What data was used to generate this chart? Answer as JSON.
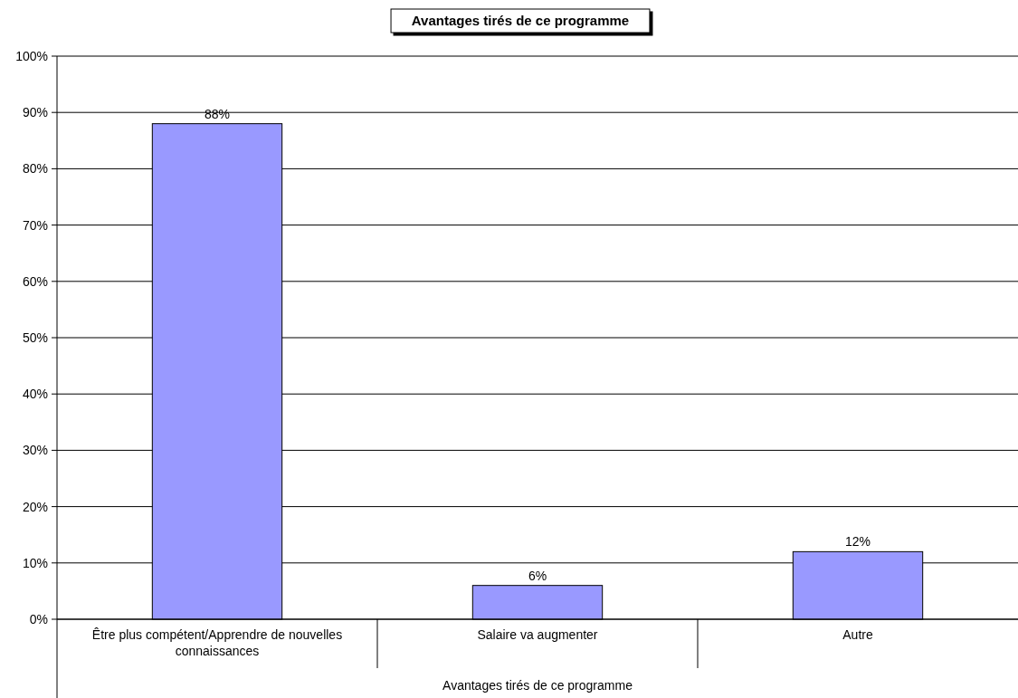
{
  "chart_data": {
    "type": "bar",
    "title": "Avantages tirés de ce programme",
    "xlabel": "Avantages tirés de ce programme",
    "categories": [
      "Être plus compétent/Apprendre de nouvelles connaissances",
      "Salaire va augmenter",
      "Autre"
    ],
    "values": [
      88,
      6,
      12
    ],
    "color": "#9999ff",
    "data_labels": true,
    "value_labels": [
      "88%",
      "6%",
      "12%"
    ],
    "ylim": [
      0,
      100
    ],
    "yticks": [
      {
        "value": 0,
        "label": "0%"
      },
      {
        "value": 10,
        "label": "10%"
      },
      {
        "value": 20,
        "label": "20%"
      },
      {
        "value": 30,
        "label": "30%"
      },
      {
        "value": 40,
        "label": "40%"
      },
      {
        "value": 50,
        "label": "50%"
      },
      {
        "value": 60,
        "label": "60%"
      },
      {
        "value": 70,
        "label": "70%"
      },
      {
        "value": 80,
        "label": "80%"
      },
      {
        "value": 90,
        "label": "90%"
      },
      {
        "value": 100,
        "label": "100%"
      }
    ],
    "grid": "y"
  }
}
